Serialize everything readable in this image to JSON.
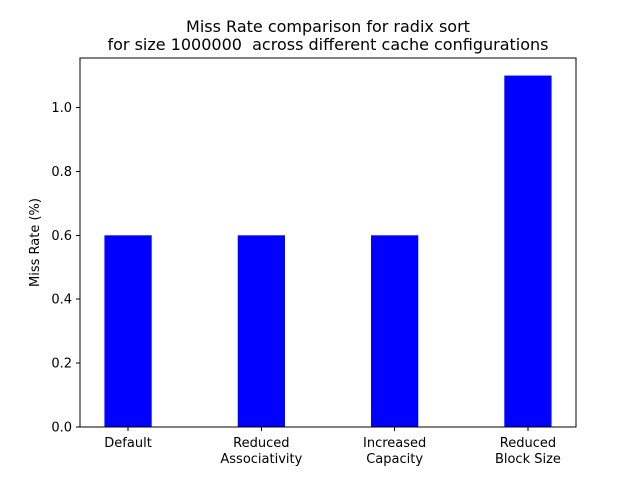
{
  "chart_data": {
    "type": "bar",
    "title": "Miss Rate comparison for radix sort\nfor size 1000000  across different cache configurations",
    "xlabel": "",
    "ylabel": "Miss Rate (%)",
    "categories": [
      "Default",
      "Reduced\nAssociativity",
      "Increased\nCapacity",
      "Reduced\nBlock Size"
    ],
    "values": [
      0.6,
      0.6,
      0.6,
      1.1
    ],
    "ylim": [
      0,
      1.155
    ],
    "yticks": [
      "0.0",
      "0.2",
      "0.4",
      "0.6",
      "0.8",
      "1.0"
    ],
    "bar_color": "#0000ff",
    "grid": false
  }
}
